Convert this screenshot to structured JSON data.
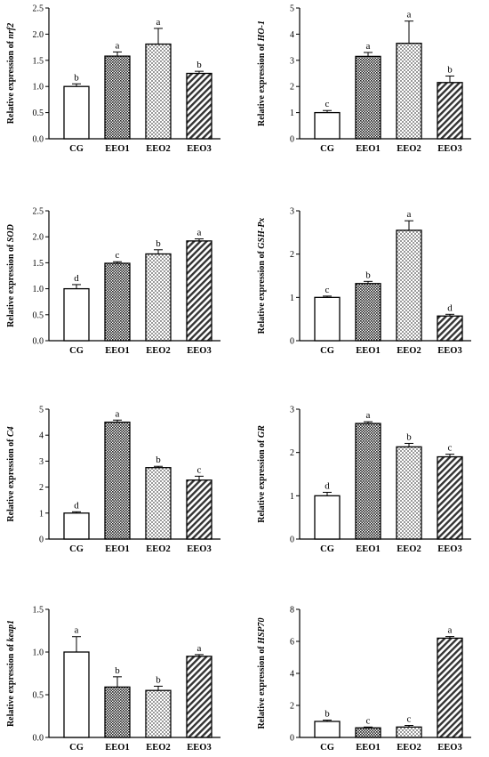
{
  "chart_data": [
    {
      "type": "bar",
      "ylabel_prefix": "Relative expression of",
      "gene": "nrf2",
      "categories": [
        "CG",
        "EEO1",
        "EEO2",
        "EEO3"
      ],
      "values": [
        1.0,
        1.58,
        1.81,
        1.25
      ],
      "errors": [
        0.05,
        0.08,
        0.3,
        0.04
      ],
      "letters": [
        "b",
        "a",
        "a",
        "b"
      ],
      "ylim": [
        0,
        2.5
      ],
      "yticks": [
        "0.0",
        "0.5",
        "1.0",
        "1.5",
        "2.0",
        "2.5"
      ]
    },
    {
      "type": "bar",
      "ylabel_prefix": "Relative expression of",
      "gene": "HO-1",
      "categories": [
        "CG",
        "EEO1",
        "EEO2",
        "EEO3"
      ],
      "values": [
        1.0,
        3.15,
        3.65,
        2.15
      ],
      "errors": [
        0.08,
        0.15,
        0.85,
        0.25
      ],
      "letters": [
        "c",
        "a",
        "a",
        "b"
      ],
      "ylim": [
        0,
        5
      ],
      "yticks": [
        "0",
        "1",
        "2",
        "3",
        "4",
        "5"
      ]
    },
    {
      "type": "bar",
      "ylabel_prefix": "Relative expression of",
      "gene": "SOD",
      "categories": [
        "CG",
        "EEO1",
        "EEO2",
        "EEO3"
      ],
      "values": [
        1.0,
        1.49,
        1.67,
        1.92
      ],
      "errors": [
        0.08,
        0.03,
        0.08,
        0.04
      ],
      "letters": [
        "d",
        "c",
        "b",
        "a"
      ],
      "ylim": [
        0,
        2.5
      ],
      "yticks": [
        "0.0",
        "0.5",
        "1.0",
        "1.5",
        "2.0",
        "2.5"
      ]
    },
    {
      "type": "bar",
      "ylabel_prefix": "Relative expression of",
      "gene": "GSH-Px",
      "categories": [
        "CG",
        "EEO1",
        "EEO2",
        "EEO3"
      ],
      "values": [
        1.0,
        1.32,
        2.55,
        0.57
      ],
      "errors": [
        0.03,
        0.05,
        0.22,
        0.04
      ],
      "letters": [
        "c",
        "b",
        "a",
        "d"
      ],
      "ylim": [
        0,
        3
      ],
      "yticks": [
        "0",
        "1",
        "2",
        "3"
      ]
    },
    {
      "type": "bar",
      "ylabel_prefix": "Relative expression of",
      "gene": "C4",
      "categories": [
        "CG",
        "EEO1",
        "EEO2",
        "EEO3"
      ],
      "values": [
        1.0,
        4.5,
        2.75,
        2.27
      ],
      "errors": [
        0.05,
        0.08,
        0.05,
        0.15
      ],
      "letters": [
        "d",
        "a",
        "b",
        "c"
      ],
      "ylim": [
        0,
        5
      ],
      "yticks": [
        "0",
        "1",
        "2",
        "3",
        "4",
        "5"
      ]
    },
    {
      "type": "bar",
      "ylabel_prefix": "Relative expression of",
      "gene": "GR",
      "categories": [
        "CG",
        "EEO1",
        "EEO2",
        "EEO3"
      ],
      "values": [
        1.0,
        2.67,
        2.13,
        1.9
      ],
      "errors": [
        0.08,
        0.04,
        0.08,
        0.06
      ],
      "letters": [
        "d",
        "a",
        "b",
        "c"
      ],
      "ylim": [
        0,
        3
      ],
      "yticks": [
        "0",
        "1",
        "2",
        "3"
      ]
    },
    {
      "type": "bar",
      "ylabel_prefix": "Relative expression of",
      "gene": "keap1",
      "categories": [
        "CG",
        "EEO1",
        "EEO2",
        "EEO3"
      ],
      "values": [
        1.0,
        0.59,
        0.55,
        0.95
      ],
      "errors": [
        0.18,
        0.12,
        0.05,
        0.02
      ],
      "letters": [
        "a",
        "b",
        "b",
        "a"
      ],
      "ylim": [
        0,
        1.5
      ],
      "yticks": [
        "0.0",
        "0.5",
        "1.0",
        "1.5"
      ]
    },
    {
      "type": "bar",
      "ylabel_prefix": "Relative expression of",
      "gene": "HSP70",
      "categories": [
        "CG",
        "EEO1",
        "EEO2",
        "EEO3"
      ],
      "values": [
        1.0,
        0.6,
        0.65,
        6.2
      ],
      "errors": [
        0.08,
        0.05,
        0.1,
        0.1
      ],
      "letters": [
        "b",
        "c",
        "c",
        "a"
      ],
      "ylim": [
        0,
        8
      ],
      "yticks": [
        "0",
        "2",
        "4",
        "6",
        "8"
      ]
    }
  ]
}
